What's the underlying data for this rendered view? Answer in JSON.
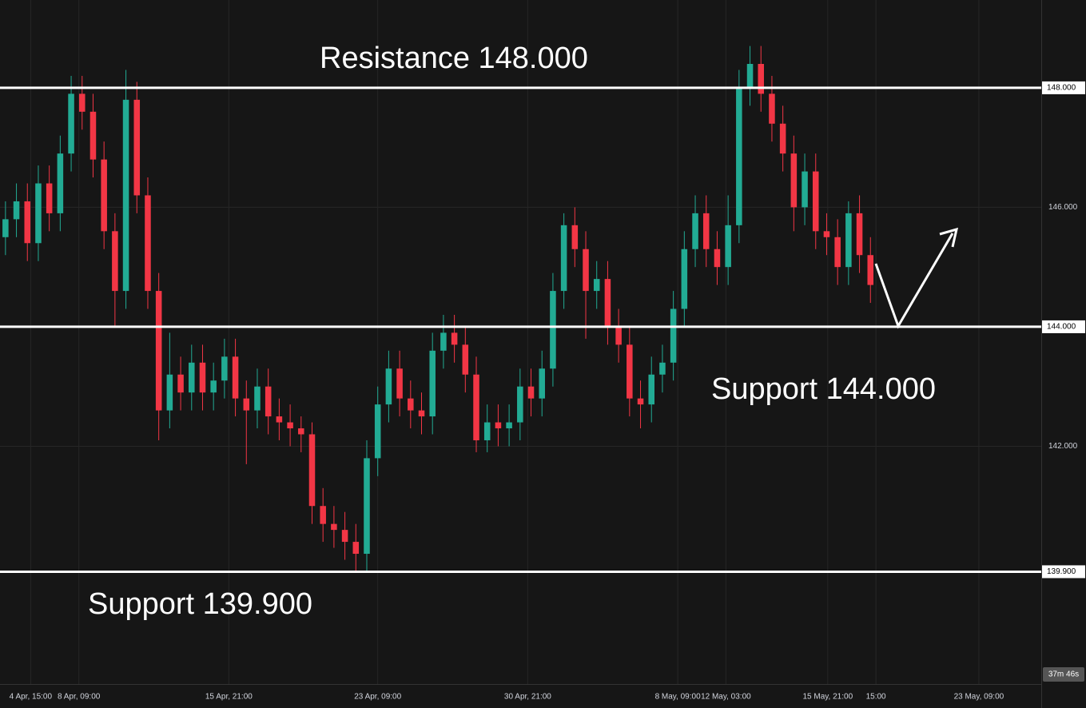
{
  "chart_data": {
    "type": "candlestick",
    "x": [
      0,
      1,
      2,
      3,
      4,
      5,
      6,
      7,
      8,
      9,
      10,
      11,
      12,
      13,
      14,
      15,
      16,
      17,
      18,
      19,
      20,
      21,
      22,
      23,
      24,
      25,
      26,
      27,
      28,
      29,
      30,
      31,
      32,
      33,
      34,
      35,
      36,
      37,
      38,
      39,
      40,
      41,
      42,
      43,
      44,
      45,
      46,
      47,
      48,
      49,
      50,
      51,
      52,
      53,
      54,
      55,
      56,
      57,
      58,
      59,
      60,
      61,
      62,
      63,
      64,
      65,
      66,
      67,
      68,
      69,
      70,
      71,
      72,
      73,
      74,
      75,
      76,
      77,
      78,
      79
    ],
    "open": [
      145.5,
      145.8,
      146.1,
      145.4,
      146.4,
      145.9,
      146.9,
      147.9,
      147.6,
      146.8,
      145.6,
      144.6,
      147.8,
      146.2,
      144.6,
      142.6,
      143.2,
      142.9,
      143.4,
      142.9,
      143.1,
      143.5,
      142.8,
      142.6,
      143.0,
      142.5,
      142.4,
      142.3,
      142.2,
      141.0,
      140.7,
      140.6,
      140.4,
      140.2,
      141.8,
      142.7,
      143.3,
      142.8,
      142.6,
      142.5,
      143.6,
      143.9,
      143.7,
      143.2,
      142.1,
      142.4,
      142.3,
      142.4,
      143.0,
      142.8,
      143.3,
      144.6,
      145.7,
      145.3,
      144.6,
      144.8,
      144.0,
      143.7,
      142.8,
      142.7,
      143.2,
      143.4,
      144.3,
      145.3,
      145.9,
      145.3,
      145.0,
      145.7,
      148.0,
      148.4,
      147.9,
      147.4,
      146.9,
      146.0,
      146.6,
      145.6,
      145.5,
      145.0,
      145.9,
      145.2
    ],
    "high": [
      146.1,
      146.4,
      146.4,
      146.7,
      146.7,
      147.2,
      148.2,
      148.2,
      147.9,
      147.1,
      145.9,
      148.3,
      148.1,
      146.5,
      144.9,
      143.9,
      143.5,
      143.7,
      143.7,
      143.4,
      143.8,
      143.8,
      143.1,
      143.3,
      143.3,
      142.8,
      142.7,
      142.5,
      142.4,
      141.3,
      141.0,
      140.9,
      140.7,
      142.1,
      143.0,
      143.6,
      143.6,
      143.1,
      142.9,
      143.9,
      144.2,
      144.2,
      144.0,
      143.5,
      142.7,
      142.7,
      142.7,
      143.3,
      143.3,
      143.6,
      144.9,
      145.9,
      146.0,
      145.6,
      145.1,
      145.1,
      144.3,
      144.0,
      143.1,
      143.5,
      143.7,
      144.6,
      145.6,
      146.2,
      146.2,
      145.6,
      146.2,
      148.3,
      148.7,
      148.7,
      148.2,
      147.7,
      147.2,
      146.9,
      146.9,
      145.9,
      145.8,
      146.1,
      146.2,
      145.5
    ],
    "low": [
      145.2,
      145.5,
      145.1,
      145.1,
      145.6,
      145.6,
      146.6,
      147.3,
      146.5,
      145.3,
      144.0,
      144.3,
      145.9,
      144.3,
      142.1,
      142.3,
      142.6,
      142.6,
      142.6,
      142.6,
      142.8,
      142.5,
      141.7,
      142.3,
      142.2,
      142.1,
      142.0,
      141.9,
      140.7,
      140.4,
      140.3,
      140.1,
      139.9,
      139.9,
      141.5,
      142.4,
      142.5,
      142.3,
      142.2,
      142.2,
      143.3,
      143.4,
      142.9,
      141.9,
      141.9,
      142.0,
      142.0,
      142.1,
      142.5,
      142.5,
      143.0,
      144.3,
      145.0,
      143.8,
      144.3,
      143.7,
      143.4,
      142.5,
      142.3,
      142.4,
      142.9,
      143.1,
      144.0,
      145.0,
      145.0,
      144.7,
      144.7,
      145.4,
      147.7,
      147.6,
      147.1,
      146.6,
      145.6,
      145.7,
      145.3,
      145.2,
      144.7,
      144.7,
      144.9,
      144.4
    ],
    "close": [
      145.8,
      146.1,
      145.4,
      146.4,
      145.9,
      146.9,
      147.9,
      147.6,
      146.8,
      145.6,
      144.6,
      147.8,
      146.2,
      144.6,
      142.6,
      143.2,
      142.9,
      143.4,
      142.9,
      143.1,
      143.5,
      142.8,
      142.6,
      143.0,
      142.5,
      142.4,
      142.3,
      142.2,
      141.0,
      140.7,
      140.6,
      140.4,
      140.2,
      141.8,
      142.7,
      143.3,
      142.8,
      142.6,
      142.5,
      143.6,
      143.9,
      143.7,
      143.2,
      142.1,
      142.4,
      142.3,
      142.4,
      143.0,
      142.8,
      143.3,
      144.6,
      145.7,
      145.3,
      144.6,
      144.8,
      144.0,
      143.7,
      142.8,
      142.7,
      143.2,
      143.4,
      144.3,
      145.3,
      145.9,
      145.3,
      145.0,
      145.7,
      148.0,
      148.4,
      147.9,
      147.4,
      146.9,
      146.0,
      146.6,
      145.6,
      145.5,
      145.0,
      145.9,
      145.2,
      144.7
    ],
    "up_color": "#22ab94",
    "down_color": "#f23645",
    "xlim": [
      -0.5,
      94.6
    ],
    "xticks": [
      {
        "value": 2.3,
        "label": "4 Apr, 15:00"
      },
      {
        "value": 6.7,
        "label": "8 Apr, 09:00"
      },
      {
        "value": 20.4,
        "label": "15 Apr, 21:00"
      },
      {
        "value": 34.0,
        "label": "23 Apr, 09:00"
      },
      {
        "value": 47.7,
        "label": "30 Apr, 21:00"
      },
      {
        "value": 61.4,
        "label": "8 May, 09:00"
      },
      {
        "value": 65.8,
        "label": "12 May, 03:00"
      },
      {
        "value": 75.1,
        "label": "15 May, 21:00"
      },
      {
        "value": 79.5,
        "label": "15:00"
      },
      {
        "value": 88.9,
        "label": "23 May, 09:00"
      }
    ],
    "ylim": [
      138.02,
      149.47
    ],
    "yticks": [
      {
        "value": 142,
        "label": "142.000"
      },
      {
        "value": 146,
        "label": "146.000"
      }
    ],
    "grid": true,
    "levels": [
      {
        "value": 148,
        "label": "148.000"
      },
      {
        "value": 144,
        "label": "144.000"
      },
      {
        "value": 139.9,
        "label": "139.900"
      }
    ],
    "annotations": [
      "Resistance 148.000",
      "Support 144.000",
      "Support 139.900"
    ],
    "countdown": "37m 46s"
  }
}
